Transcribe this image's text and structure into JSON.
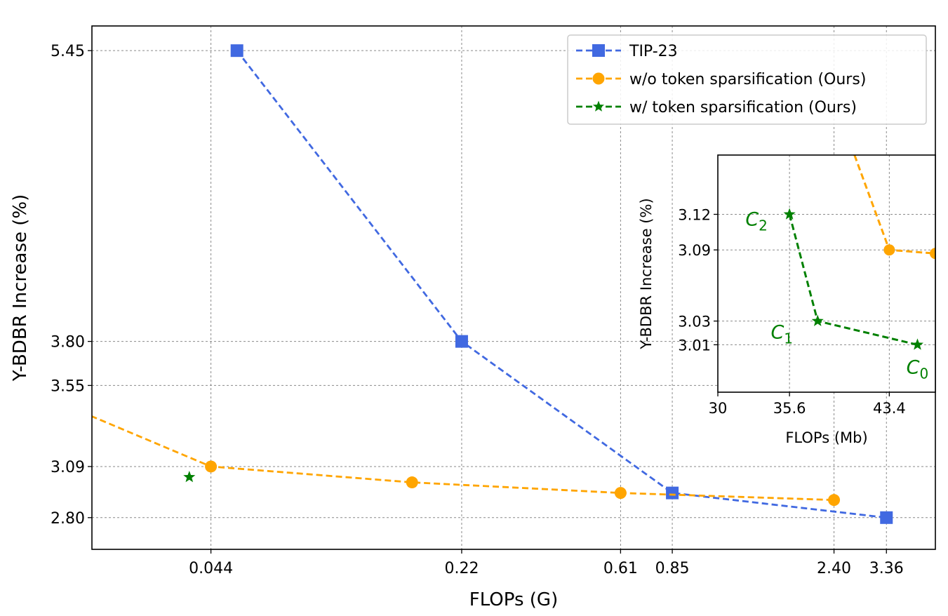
{
  "chart_data": [
    {
      "type": "line",
      "xlabel": "FLOPs (G)",
      "ylabel": "Y-BDBR Increase (%)",
      "x_scale": "log",
      "xlim": [
        0.0205,
        4.6
      ],
      "ylim": [
        2.62,
        5.59
      ],
      "x_ticks": [
        0.044,
        0.22,
        0.61,
        0.85,
        2.4,
        3.36
      ],
      "x_tick_labels": [
        "0.044",
        "0.22",
        "0.61",
        "0.85",
        "2.40",
        "3.36"
      ],
      "y_ticks": [
        2.8,
        3.09,
        3.55,
        3.8,
        5.45
      ],
      "y_tick_labels": [
        "2.80",
        "3.09",
        "3.55",
        "3.80",
        "5.45"
      ],
      "grid": true,
      "legend_position": "top-right",
      "series": [
        {
          "name": "TIP-23",
          "color": "#4169e1",
          "marker": "square",
          "x": [
            0.052,
            0.22,
            0.85,
            3.36
          ],
          "y": [
            5.45,
            3.8,
            2.94,
            2.8
          ]
        },
        {
          "name": "w/o token sparsification (Ours)",
          "color": "#ffa500",
          "marker": "circle",
          "x": [
            0.0128,
            0.044,
            0.16,
            0.61,
            2.4
          ],
          "y": [
            3.55,
            3.09,
            3.0,
            2.94,
            2.9
          ]
        },
        {
          "name": "w/ token sparsification (Ours)",
          "color": "#008000",
          "marker": "star",
          "x": [
            0.0383
          ],
          "y": [
            3.03
          ]
        }
      ]
    },
    {
      "type": "line",
      "xlabel": "FLOPs (Mb)",
      "ylabel": "Y-BDBR Increase (%)",
      "xlim": [
        30,
        47
      ],
      "ylim": [
        2.97,
        3.17
      ],
      "x_ticks": [
        30,
        35.6,
        43.4
      ],
      "x_tick_labels": [
        "30",
        "35.6",
        "43.4"
      ],
      "y_ticks": [
        3.01,
        3.03,
        3.09,
        3.12
      ],
      "y_tick_labels": [
        "3.01",
        "3.03",
        "3.09",
        "3.12"
      ],
      "grid": true,
      "series": [
        {
          "color": "#ffa500",
          "marker": "circle",
          "x": [
            38.3,
            43.4,
            47.0
          ],
          "y": [
            3.24,
            3.09,
            3.087
          ]
        },
        {
          "color": "#008000",
          "marker": "star",
          "x": [
            35.6,
            37.8,
            45.6
          ],
          "y": [
            3.12,
            3.03,
            3.01
          ],
          "annotations": [
            {
              "letter": "C",
              "sub": "2",
              "x": 35.6,
              "y": 3.12
            },
            {
              "letter": "C",
              "sub": "1",
              "x": 37.8,
              "y": 3.03
            },
            {
              "letter": "C",
              "sub": "0",
              "x": 45.6,
              "y": 3.01
            }
          ]
        }
      ]
    }
  ]
}
